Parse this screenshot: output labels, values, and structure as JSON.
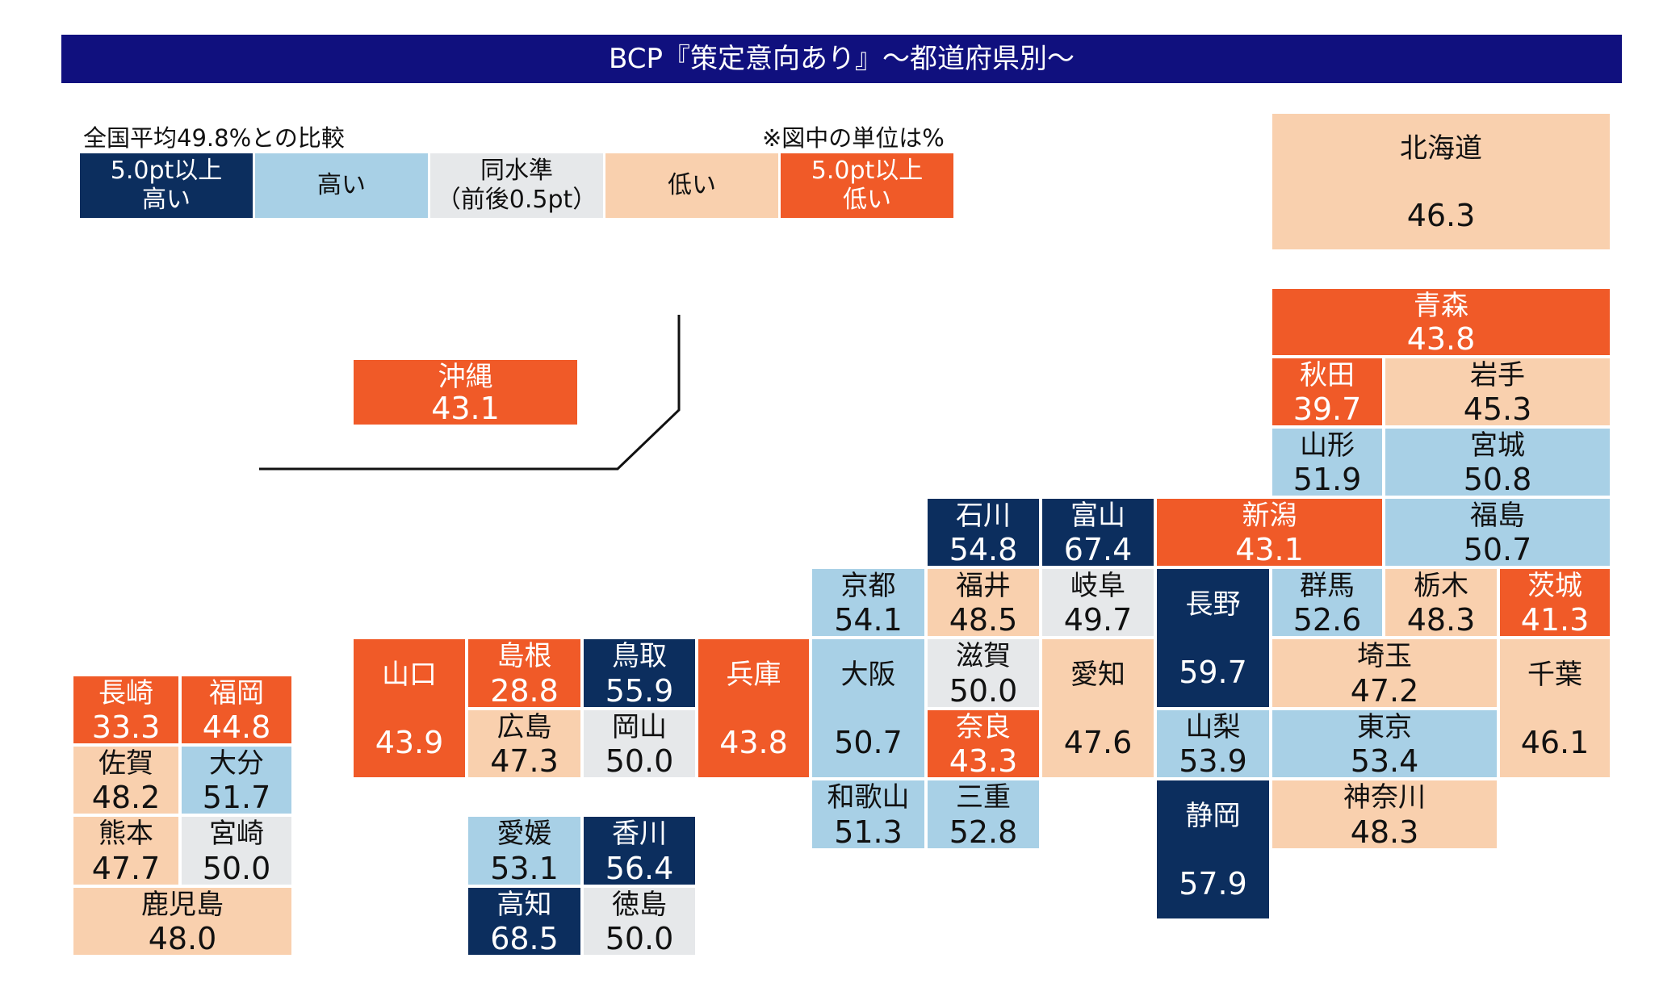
{
  "title": "BCP『策定意向あり』～都道府県別～",
  "legend": {
    "title": "全国平均49.8%との比較",
    "unit_note": "※図中の単位は%",
    "categories": [
      {
        "key": "much_higher",
        "label": "5.0pt以上\n高い",
        "color": "#0c2e5e",
        "text_color": "#ffffff"
      },
      {
        "key": "higher",
        "label": "高い",
        "color": "#a8d0e6",
        "text_color": "#111111"
      },
      {
        "key": "same",
        "label": "同水準\n（前後0.5pt）",
        "color": "#e6e8ea",
        "text_color": "#111111"
      },
      {
        "key": "lower",
        "label": "低い",
        "color": "#f9d0ae",
        "text_color": "#111111"
      },
      {
        "key": "much_lower",
        "label": "5.0pt以上\n低い",
        "color": "#f05a28",
        "text_color": "#ffffff"
      }
    ]
  },
  "chart_data": {
    "type": "table",
    "national_average": 49.8,
    "prefectures": [
      {
        "name": "北海道",
        "value": 46.3,
        "category": "lower"
      },
      {
        "name": "青森",
        "value": 43.8,
        "category": "much_lower"
      },
      {
        "name": "秋田",
        "value": 39.7,
        "category": "much_lower"
      },
      {
        "name": "岩手",
        "value": 45.3,
        "category": "lower"
      },
      {
        "name": "山形",
        "value": 51.9,
        "category": "higher"
      },
      {
        "name": "宮城",
        "value": 50.8,
        "category": "higher"
      },
      {
        "name": "新潟",
        "value": 43.1,
        "category": "much_lower"
      },
      {
        "name": "福島",
        "value": 50.7,
        "category": "higher"
      },
      {
        "name": "石川",
        "value": 54.8,
        "category": "much_higher"
      },
      {
        "name": "富山",
        "value": 67.4,
        "category": "much_higher"
      },
      {
        "name": "群馬",
        "value": 52.6,
        "category": "higher"
      },
      {
        "name": "栃木",
        "value": 48.3,
        "category": "lower"
      },
      {
        "name": "茨城",
        "value": 41.3,
        "category": "much_lower"
      },
      {
        "name": "長野",
        "value": 59.7,
        "category": "much_higher"
      },
      {
        "name": "京都",
        "value": 54.1,
        "category": "higher"
      },
      {
        "name": "福井",
        "value": 48.5,
        "category": "lower"
      },
      {
        "name": "岐阜",
        "value": 49.7,
        "category": "same"
      },
      {
        "name": "埼玉",
        "value": 47.2,
        "category": "lower"
      },
      {
        "name": "千葉",
        "value": 46.1,
        "category": "lower"
      },
      {
        "name": "山梨",
        "value": 53.9,
        "category": "higher"
      },
      {
        "name": "東京",
        "value": 53.4,
        "category": "higher"
      },
      {
        "name": "静岡",
        "value": 57.9,
        "category": "much_higher"
      },
      {
        "name": "神奈川",
        "value": 48.3,
        "category": "lower"
      },
      {
        "name": "大阪",
        "value": 50.7,
        "category": "higher"
      },
      {
        "name": "滋賀",
        "value": 50.0,
        "category": "same"
      },
      {
        "name": "愛知",
        "value": 47.6,
        "category": "lower"
      },
      {
        "name": "奈良",
        "value": 43.3,
        "category": "much_lower"
      },
      {
        "name": "和歌山",
        "value": 51.3,
        "category": "higher"
      },
      {
        "name": "三重",
        "value": 52.8,
        "category": "higher"
      },
      {
        "name": "兵庫",
        "value": 43.8,
        "category": "much_lower"
      },
      {
        "name": "鳥取",
        "value": 55.9,
        "category": "much_higher"
      },
      {
        "name": "岡山",
        "value": 50.0,
        "category": "same"
      },
      {
        "name": "島根",
        "value": 28.8,
        "category": "much_lower"
      },
      {
        "name": "広島",
        "value": 47.3,
        "category": "lower"
      },
      {
        "name": "山口",
        "value": 43.9,
        "category": "much_lower"
      },
      {
        "name": "愛媛",
        "value": 53.1,
        "category": "higher"
      },
      {
        "name": "香川",
        "value": 56.4,
        "category": "much_higher"
      },
      {
        "name": "高知",
        "value": 68.5,
        "category": "much_higher"
      },
      {
        "name": "徳島",
        "value": 50.0,
        "category": "same"
      },
      {
        "name": "長崎",
        "value": 33.3,
        "category": "much_lower"
      },
      {
        "name": "福岡",
        "value": 44.8,
        "category": "much_lower"
      },
      {
        "name": "佐賀",
        "value": 48.2,
        "category": "lower"
      },
      {
        "name": "大分",
        "value": 51.7,
        "category": "higher"
      },
      {
        "name": "熊本",
        "value": 47.7,
        "category": "lower"
      },
      {
        "name": "宮崎",
        "value": 50.0,
        "category": "same"
      },
      {
        "name": "鹿児島",
        "value": 48.0,
        "category": "lower"
      },
      {
        "name": "沖縄",
        "value": 43.1,
        "category": "much_lower"
      }
    ]
  }
}
